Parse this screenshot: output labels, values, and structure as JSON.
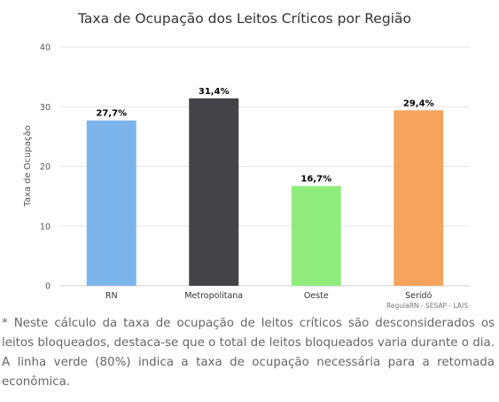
{
  "chart_data": {
    "type": "bar",
    "title": "Taxa de Ocupação dos Leitos Críticos por Região",
    "ylabel": "Taxa de Ocupação",
    "xlabel": "",
    "ylim": [
      0,
      40
    ],
    "yticks": [
      0,
      10,
      20,
      30,
      40
    ],
    "categories": [
      "RN",
      "Metropolitana",
      "Oeste",
      "Seridó"
    ],
    "values": [
      27.7,
      31.4,
      16.7,
      29.4
    ],
    "data_labels": [
      "27,7%",
      "31,4%",
      "16,7%",
      "29,4%"
    ],
    "colors": [
      "#7cb5ec",
      "#434348",
      "#90ed7d",
      "#f7a35c"
    ],
    "grid": true,
    "legend": "none",
    "credit": "RegulaRN - SESAP - LAIS"
  },
  "footnote": "* Neste cálculo da taxa de ocupação de leitos críticos são desconsiderados os leitos bloqueados, destaca-se que o total de leitos bloqueados varia durante o dia. A linha verde (80%) indica a taxa de ocupação necessária para a retomada econômica."
}
